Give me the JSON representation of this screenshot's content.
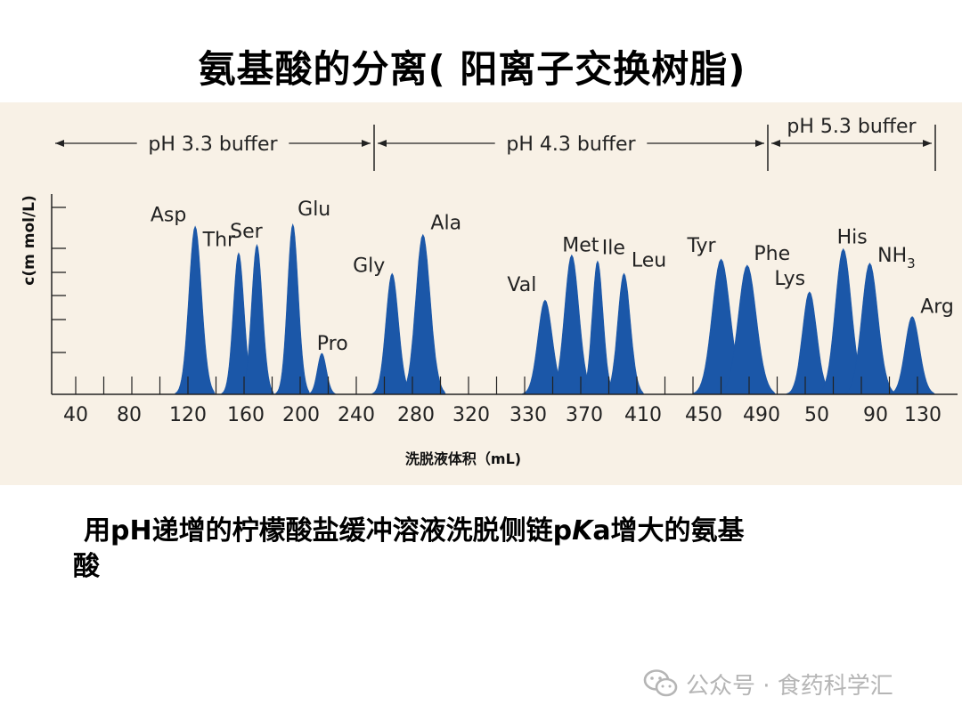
{
  "title": "氨基酸的分离( 阳离子交换树脂)",
  "caption": {
    "line1": "用pH递增的柠檬酸盐缓冲溶液洗脱侧链p",
    "k_letter": "K",
    "line1_tail": "a增大的氨基",
    "line2": "酸"
  },
  "watermark": {
    "icon": "wechat-icon",
    "text": "公众号 · 食药科学汇"
  },
  "colors": {
    "panel_bg": "#f8f1e6",
    "peak_fill": "#1b57a8",
    "peak_fill_light": "#4f86c9",
    "axis": "#222222"
  },
  "chart_data": {
    "type": "area",
    "xlabel": "洗脱液体积（mL)",
    "ylabel": "c(m mol/L)",
    "x_ticks": [
      "40",
      "80",
      "120",
      "160",
      "200",
      "240",
      "280",
      "320",
      "330",
      "370",
      "410",
      "450",
      "490",
      "50",
      "90",
      "130"
    ],
    "buffers": [
      {
        "label": "pH 3.3 buffer",
        "from": "0",
        "to": "250"
      },
      {
        "label": "pH 4.3 buffer",
        "from": "250",
        "to": "490"
      },
      {
        "label": "pH 5.3 buffer",
        "from": "490",
        "to": "150"
      }
    ],
    "peaks": [
      {
        "name": "Asp",
        "x": "125",
        "height": 0.82
      },
      {
        "name": "Thr",
        "x": "155",
        "height": 0.69
      },
      {
        "name": "Ser",
        "x": "168",
        "height": 0.73
      },
      {
        "name": "Glu",
        "x": "194",
        "height": 0.83
      },
      {
        "name": "Pro",
        "x": "215",
        "height": 0.2
      },
      {
        "name": "Gly",
        "x": "264",
        "height": 0.59
      },
      {
        "name": "Ala",
        "x": "285",
        "height": 0.78
      },
      {
        "name": "Val",
        "x": "342",
        "height": 0.46
      },
      {
        "name": "Met",
        "x": "361",
        "height": 0.68
      },
      {
        "name": "Ile",
        "x": "379",
        "height": 0.65
      },
      {
        "name": "Leu",
        "x": "397",
        "height": 0.59
      },
      {
        "name": "Tyr",
        "x": "462",
        "height": 0.66
      },
      {
        "name": "Phe",
        "x": "480",
        "height": 0.63
      },
      {
        "name": "Lys",
        "x": "45",
        "height": 0.5
      },
      {
        "name": "His",
        "x": "68",
        "height": 0.71
      },
      {
        "name": "NH",
        "sub": "3",
        "x": "86",
        "height": 0.64
      },
      {
        "name": "Arg",
        "x": "121",
        "height": 0.38
      }
    ]
  }
}
